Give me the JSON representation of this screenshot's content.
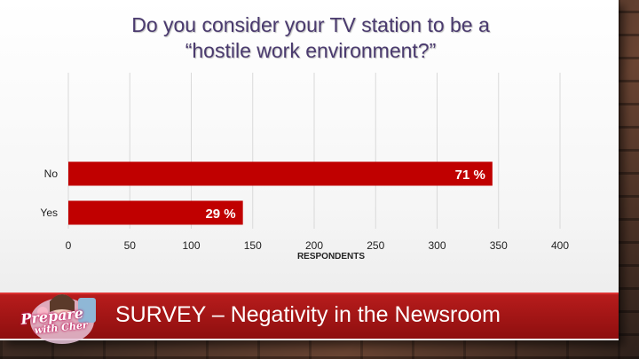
{
  "slide": {
    "title_line1": "Do you consider your TV station to be a",
    "title_line2": "“hostile work environment?”",
    "banner": "SURVEY – Negativity in the Newsroom",
    "logo": {
      "line1": "Prepare",
      "line2": "with Cher"
    }
  },
  "colors": {
    "bar": "#c00000",
    "title": "#4a3a6e",
    "banner": "#b71c1c"
  },
  "chart_data": {
    "type": "bar",
    "orientation": "horizontal",
    "categories": [
      "No",
      "Yes"
    ],
    "values": [
      345,
      142
    ],
    "data_labels": [
      "71 %",
      "29 %"
    ],
    "xlabel": "RESPONDENTS",
    "ylabel": "",
    "xlim": [
      0,
      400
    ],
    "xticks": [
      "0",
      "50",
      "100",
      "150",
      "200",
      "250",
      "300",
      "350",
      "400"
    ],
    "grid": true
  }
}
